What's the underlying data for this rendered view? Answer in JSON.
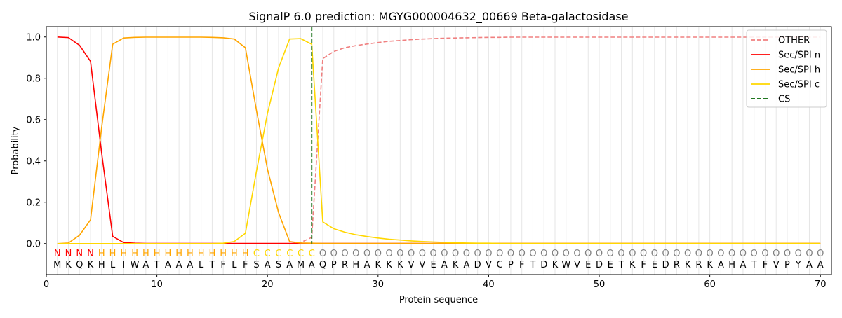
{
  "chart_data": {
    "type": "line",
    "title": "SignalP 6.0 prediction: MGYG000004632_00669 Beta-galactosidase",
    "xlabel": "Protein sequence",
    "ylabel": "Probability",
    "xlim": [
      0,
      71
    ],
    "ylim": [
      -0.15,
      1.05
    ],
    "xticks": [
      0,
      10,
      20,
      30,
      40,
      50,
      60,
      70
    ],
    "yticks": [
      0.0,
      0.2,
      0.4,
      0.6,
      0.8,
      1.0
    ],
    "grid": "vertical lines at each residue",
    "legend_position": "top-right",
    "sequence": [
      "M",
      "K",
      "Q",
      "K",
      "H",
      "L",
      "I",
      "W",
      "A",
      "T",
      "A",
      "A",
      "A",
      "L",
      "T",
      "F",
      "L",
      "F",
      "S",
      "A",
      "S",
      "A",
      "M",
      "A",
      "Q",
      "P",
      "R",
      "H",
      "A",
      "K",
      "K",
      "K",
      "V",
      "V",
      "E",
      "A",
      "K",
      "A",
      "D",
      "V",
      "C",
      "P",
      "F",
      "T",
      "D",
      "K",
      "W",
      "V",
      "E",
      "D",
      "E",
      "T",
      "K",
      "F",
      "E",
      "D",
      "R",
      "K",
      "R",
      "K",
      "A",
      "H",
      "A",
      "T",
      "F",
      "V",
      "P",
      "Y",
      "A",
      "A"
    ],
    "labels": [
      "N",
      "N",
      "N",
      "N",
      "H",
      "H",
      "H",
      "H",
      "H",
      "H",
      "H",
      "H",
      "H",
      "H",
      "H",
      "H",
      "H",
      "H",
      "C",
      "C",
      "C",
      "C",
      "C",
      "C",
      "O",
      "O",
      "O",
      "O",
      "O",
      "O",
      "O",
      "O",
      "O",
      "O",
      "O",
      "O",
      "O",
      "O",
      "O",
      "O",
      "O",
      "O",
      "O",
      "O",
      "O",
      "O",
      "O",
      "O",
      "O",
      "O",
      "O",
      "O",
      "O",
      "O",
      "O",
      "O",
      "O",
      "O",
      "O",
      "O",
      "O",
      "O",
      "O",
      "O",
      "O",
      "O",
      "O",
      "O",
      "O",
      "O"
    ],
    "label_colors": {
      "N": "#ff0000",
      "H": "#ffa500",
      "C": "#ffd700",
      "O": "#808080"
    },
    "cleavage_site": 24,
    "series": [
      {
        "name": "OTHER",
        "color": "#f08080",
        "dash": "dashed",
        "values": [
          0.0,
          0.0,
          0.0,
          0.0,
          0.0,
          0.0,
          0.0,
          0.0,
          0.0,
          0.0,
          0.0,
          0.0,
          0.0,
          0.0,
          0.0,
          0.0,
          0.0,
          0.0,
          0.0,
          0.0,
          0.0,
          0.0,
          0.005,
          0.03,
          0.895,
          0.93,
          0.948,
          0.958,
          0.966,
          0.973,
          0.979,
          0.983,
          0.987,
          0.99,
          0.992,
          0.994,
          0.995,
          0.996,
          0.997,
          0.998,
          0.998,
          0.999,
          0.999,
          0.999,
          0.999,
          0.999,
          0.999,
          0.999,
          0.999,
          0.999,
          0.999,
          0.999,
          0.999,
          0.999,
          0.999,
          0.999,
          0.999,
          0.999,
          0.999,
          0.999,
          0.999,
          0.999,
          0.999,
          0.999,
          0.999,
          0.999,
          0.999,
          0.999,
          0.999,
          0.999
        ]
      },
      {
        "name": "Sec/SPI n",
        "color": "#ff0000",
        "dash": "solid",
        "values": [
          1.0,
          0.997,
          0.96,
          0.882,
          0.44,
          0.035,
          0.005,
          0.002,
          0.001,
          0.001,
          0.001,
          0.001,
          0.001,
          0.001,
          0.001,
          0.001,
          0.001,
          0.001,
          0.001,
          0.001,
          0.001,
          0.001,
          0.001,
          0.001,
          0.001,
          0.001,
          0.001,
          0.001,
          0.001,
          0.001,
          0.001,
          0.001,
          0.001,
          0.001,
          0.001,
          0.001,
          0.001,
          0.001,
          0.001,
          0.001,
          0.001,
          0.001,
          0.001,
          0.001,
          0.001,
          0.001,
          0.001,
          0.001,
          0.001,
          0.001,
          0.001,
          0.001,
          0.001,
          0.001,
          0.001,
          0.001,
          0.001,
          0.001,
          0.001,
          0.001,
          0.001,
          0.001,
          0.001,
          0.001,
          0.001,
          0.001,
          0.001,
          0.001,
          0.001,
          0.001
        ]
      },
      {
        "name": "Sec/SPI h",
        "color": "#ffa500",
        "dash": "solid",
        "values": [
          0.0,
          0.003,
          0.04,
          0.115,
          0.56,
          0.965,
          0.995,
          0.998,
          0.999,
          0.999,
          0.999,
          0.999,
          0.999,
          0.999,
          0.998,
          0.996,
          0.99,
          0.948,
          0.645,
          0.36,
          0.15,
          0.01,
          0.003,
          0.002,
          0.001,
          0.001,
          0.001,
          0.001,
          0.001,
          0.001,
          0.001,
          0.001,
          0.001,
          0.001,
          0.001,
          0.001,
          0.001,
          0.001,
          0.001,
          0.001,
          0.001,
          0.001,
          0.001,
          0.001,
          0.001,
          0.001,
          0.001,
          0.001,
          0.001,
          0.001,
          0.001,
          0.001,
          0.001,
          0.001,
          0.001,
          0.001,
          0.001,
          0.001,
          0.001,
          0.001,
          0.001,
          0.001,
          0.001,
          0.001,
          0.001,
          0.001,
          0.001,
          0.001,
          0.001,
          0.001
        ]
      },
      {
        "name": "Sec/SPI c",
        "color": "#ffd700",
        "dash": "solid",
        "values": [
          0.0,
          0.0,
          0.0,
          0.0,
          0.0,
          0.0,
          0.0,
          0.0,
          0.0,
          0.0,
          0.0,
          0.0,
          0.0,
          0.0,
          0.0,
          0.002,
          0.01,
          0.05,
          0.35,
          0.63,
          0.85,
          0.99,
          0.992,
          0.965,
          0.105,
          0.072,
          0.055,
          0.043,
          0.034,
          0.027,
          0.021,
          0.017,
          0.013,
          0.01,
          0.008,
          0.006,
          0.004,
          0.003,
          0.002,
          0.002,
          0.001,
          0.001,
          0.001,
          0.001,
          0.001,
          0.001,
          0.001,
          0.001,
          0.001,
          0.001,
          0.001,
          0.001,
          0.001,
          0.001,
          0.001,
          0.001,
          0.001,
          0.001,
          0.001,
          0.001,
          0.001,
          0.001,
          0.001,
          0.001,
          0.001,
          0.001,
          0.001,
          0.001,
          0.001,
          0.001
        ]
      }
    ],
    "cs_legend": {
      "name": "CS",
      "color": "#006400",
      "dash": "dashed"
    }
  }
}
